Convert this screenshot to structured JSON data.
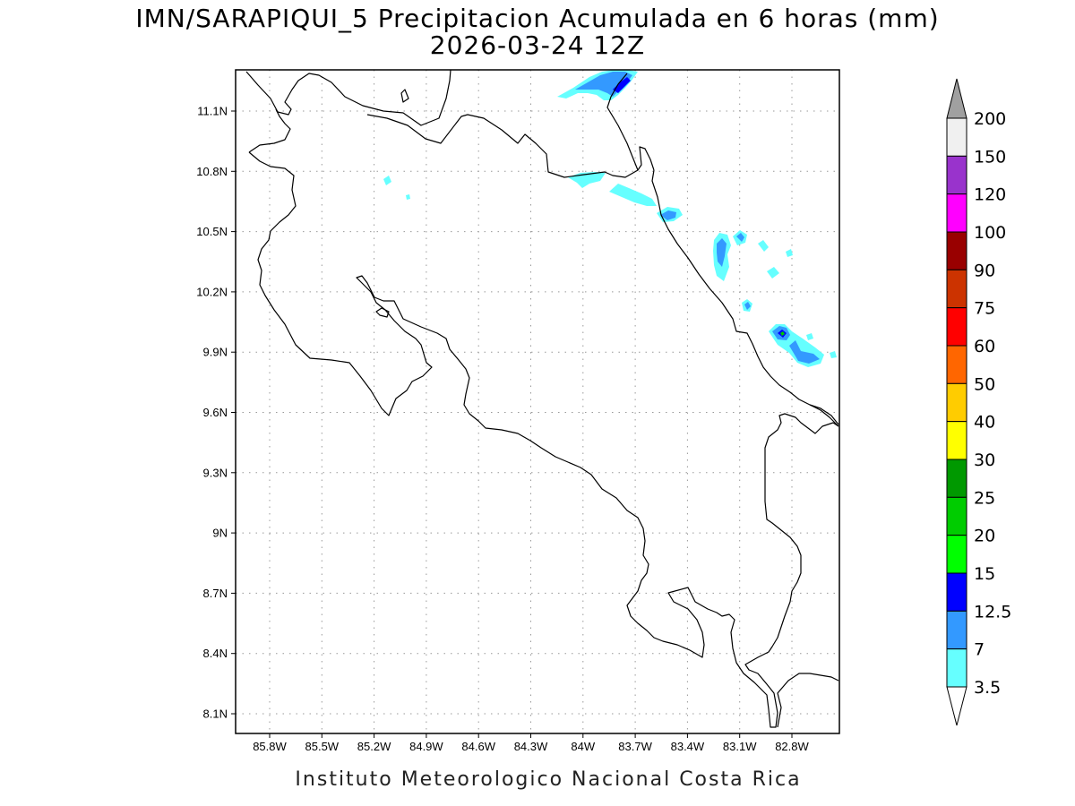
{
  "map": {
    "title": "IMN/SARAPIQUI_5 Precipitacion Acumulada en 6 horas (mm)",
    "subtitle": "2026-03-24 12Z",
    "credit": "Instituto Meteorologico Nacional Costa Rica",
    "lon_labels": [
      "85.8W",
      "85.5W",
      "85.2W",
      "84.9W",
      "84.6W",
      "84.3W",
      "84W",
      "83.7W",
      "83.4W",
      "83.1W",
      "82.8W"
    ],
    "lat_labels": [
      "11.1N",
      "10.8N",
      "10.5N",
      "10.2N",
      "9.9N",
      "9.6N",
      "9.3N",
      "9N",
      "8.7N",
      "8.4N",
      "8.1N"
    ],
    "lon_range": [
      -86.0,
      -83.0
    ],
    "lat_range": [
      8.0,
      11.2
    ],
    "grid": "dotted",
    "projection": "lat-lon"
  },
  "colorbar": {
    "levels": [
      "3.5",
      "7",
      "12.5",
      "15",
      "20",
      "25",
      "30",
      "40",
      "50",
      "60",
      "75",
      "90",
      "100",
      "120",
      "150",
      "200"
    ],
    "colors": [
      "#66ffff",
      "#3399ff",
      "#0000ff",
      "#00ff00",
      "#00cc00",
      "#009900",
      "#ffff00",
      "#ffcc00",
      "#ff6600",
      "#ff0000",
      "#cc3300",
      "#990000",
      "#ff00ff",
      "#9933cc",
      "#f0f0f0"
    ],
    "upper_arrow_color": "#a0a0a0",
    "lower_arrow_color": "#ffffff"
  }
}
